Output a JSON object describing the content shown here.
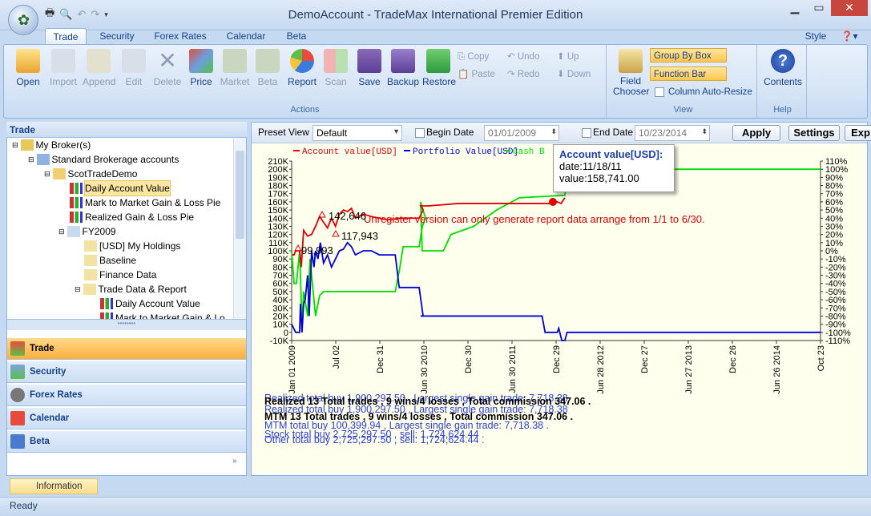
{
  "window": {
    "title": "DemoAccount - TradeMax International Premier Edition"
  },
  "tabs": [
    "Trade",
    "Security",
    "Forex Rates",
    "Calendar",
    "Beta"
  ],
  "style_menu": "Style",
  "ribbon": {
    "actions": [
      "Open",
      "Import",
      "Append",
      "Edit",
      "Delete",
      "Price",
      "Market",
      "Beta",
      "Report",
      "Scan",
      "Save",
      "Backup",
      "Restore"
    ],
    "small": [
      "Copy",
      "Paste",
      "Undo",
      "Redo",
      "Up",
      "Down"
    ],
    "actions_label": "Actions",
    "field_chooser": "Field\nChooser",
    "group_by_box": "Group By Box",
    "function_bar": "Function Bar",
    "column_auto_resize": "Column Auto-Resize",
    "view_label": "View",
    "contents": "Contents",
    "help_label": "Help"
  },
  "left_pane": {
    "title": "Trade",
    "tree": [
      "My Broker(s)",
      "Standard Brokerage accounts",
      "ScotTradeDemo",
      "Daily Account Value",
      "Mark to Market Gain & Loss Pie",
      "Realized Gain & Loss Pie",
      "FY2009",
      "[USD] My Holdings",
      "Baseline",
      "Finance Data",
      "Trade Data & Report",
      "Daily Account Value",
      "Mark to Market Gain & Lo"
    ],
    "nav": [
      "Trade",
      "Security",
      "Forex Rates",
      "Calendar",
      "Beta"
    ],
    "info_tab": "Information"
  },
  "toolbar": {
    "preset_view_label": "Preset View",
    "preset_view_value": "Default",
    "begin_date_label": "Begin Date",
    "begin_date_value": "01/01/2009",
    "end_date_label": "End Date",
    "end_date_value": "10/23/2014",
    "apply": "Apply",
    "settings": "Settings",
    "exp": "Exp"
  },
  "chart_data": {
    "type": "line",
    "legend": [
      "Account value[USD]",
      "Portfolio Value[USD]",
      "Cash B"
    ],
    "colors": {
      "account": "#e00000",
      "portfolio": "#0000d8",
      "cash": "#00dd00"
    },
    "y_left_ticks": [
      "210K",
      "200K",
      "190K",
      "180K",
      "170K",
      "160K",
      "150K",
      "140K",
      "130K",
      "120K",
      "110K",
      "100K",
      "90K",
      "80K",
      "70K",
      "60K",
      "50K",
      "40K",
      "30K",
      "20K",
      "10K",
      "0",
      "-10K"
    ],
    "y_right_ticks": [
      "110%",
      "100%",
      "90%",
      "80%",
      "70%",
      "60%",
      "50%",
      "40%",
      "30%",
      "20%",
      "10%",
      "0%",
      "-10%",
      "-20%",
      "-30%",
      "-40%",
      "-50%",
      "-60%",
      "-70%",
      "-80%",
      "-90%",
      "-100%",
      "-110%"
    ],
    "x_ticks": [
      "Jan 01 2009",
      "Jul 02",
      "Dec 31",
      "Jun 30 2010",
      "Dec 30",
      "Jun 30 2011",
      "Dec 29",
      "Jun 28 2012",
      "Dec 27",
      "Jun 27 2013",
      "Dec 26",
      "Jun 26 2014",
      "Oct 23"
    ],
    "annotations": [
      "142,646",
      "117,943",
      "99,993"
    ],
    "watermark": "Unregister version can only generate report data arrange from 1/1 to 6/30.",
    "tooltip": {
      "title": "Account value[USD]:",
      "date": "date:11/18/11",
      "value": "value:158,741.00"
    }
  },
  "log_lines": [
    "Realized 13 Total trades , 9 wins/4 losses , Total commission 347.06 .",
    "MTM 13 Total trades , 9 wins/4 losses , Total commission 347.06 .",
    "Realized total buy 1,900,297.50 , Largest single gain trade: 7,718.38",
    "MTM total buy 100,399.94 , Largest single gain trade: 7,718.38 .",
    "Stock total buy 2,725,297.50 , sell: 1,724,624.44 .",
    "Other total buy 2,725,297.50 , sell: 1,724,624.44 ."
  ],
  "status": "Ready"
}
